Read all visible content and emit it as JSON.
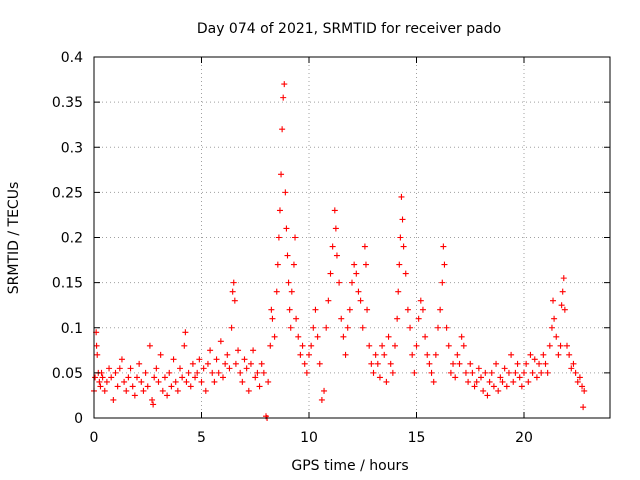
{
  "chart_data": {
    "type": "scatter",
    "title": "Day 074 of 2021, SRMTID for receiver pado",
    "xlabel": "GPS time / hours",
    "ylabel": "SRMTID / TECUs",
    "xlim": [
      0,
      24
    ],
    "ylim": [
      0,
      0.4
    ],
    "xticks": [
      0,
      5,
      10,
      15,
      20
    ],
    "xtick_labels": [
      "0",
      "5",
      "10",
      "15",
      "20"
    ],
    "yticks": [
      0,
      0.05,
      0.1,
      0.15,
      0.2,
      0.25,
      0.3,
      0.35,
      0.4
    ],
    "ytick_labels": [
      "0",
      "0.05",
      "0.1",
      "0.15",
      "0.2",
      "0.25",
      "0.3",
      "0.35",
      "0.4"
    ],
    "grid": true,
    "marker": "+",
    "marker_color": "#ff0000",
    "series": [
      {
        "name": "SRMTID",
        "points": [
          [
            0.0,
            0.03
          ],
          [
            0.05,
            0.045
          ],
          [
            0.1,
            0.095
          ],
          [
            0.12,
            0.08
          ],
          [
            0.15,
            0.07
          ],
          [
            0.2,
            0.05
          ],
          [
            0.25,
            0.04
          ],
          [
            0.3,
            0.035
          ],
          [
            0.35,
            0.05
          ],
          [
            0.4,
            0.045
          ],
          [
            0.5,
            0.03
          ],
          [
            0.6,
            0.04
          ],
          [
            0.7,
            0.055
          ],
          [
            0.8,
            0.045
          ],
          [
            0.9,
            0.02
          ],
          [
            1.0,
            0.05
          ],
          [
            1.1,
            0.035
          ],
          [
            1.2,
            0.055
          ],
          [
            1.3,
            0.065
          ],
          [
            1.4,
            0.04
          ],
          [
            1.5,
            0.03
          ],
          [
            1.6,
            0.045
          ],
          [
            1.7,
            0.055
          ],
          [
            1.8,
            0.035
          ],
          [
            1.9,
            0.025
          ],
          [
            2.0,
            0.045
          ],
          [
            2.1,
            0.06
          ],
          [
            2.2,
            0.04
          ],
          [
            2.3,
            0.03
          ],
          [
            2.4,
            0.05
          ],
          [
            2.5,
            0.035
          ],
          [
            2.6,
            0.08
          ],
          [
            2.7,
            0.02
          ],
          [
            2.75,
            0.015
          ],
          [
            2.8,
            0.045
          ],
          [
            2.9,
            0.055
          ],
          [
            3.0,
            0.04
          ],
          [
            3.1,
            0.07
          ],
          [
            3.2,
            0.03
          ],
          [
            3.3,
            0.045
          ],
          [
            3.4,
            0.025
          ],
          [
            3.5,
            0.05
          ],
          [
            3.6,
            0.035
          ],
          [
            3.7,
            0.065
          ],
          [
            3.8,
            0.04
          ],
          [
            3.9,
            0.03
          ],
          [
            4.0,
            0.055
          ],
          [
            4.1,
            0.045
          ],
          [
            4.2,
            0.08
          ],
          [
            4.25,
            0.095
          ],
          [
            4.3,
            0.04
          ],
          [
            4.4,
            0.05
          ],
          [
            4.5,
            0.035
          ],
          [
            4.6,
            0.06
          ],
          [
            4.7,
            0.045
          ],
          [
            4.8,
            0.05
          ],
          [
            4.9,
            0.065
          ],
          [
            5.0,
            0.04
          ],
          [
            5.1,
            0.055
          ],
          [
            5.2,
            0.03
          ],
          [
            5.3,
            0.06
          ],
          [
            5.4,
            0.075
          ],
          [
            5.5,
            0.05
          ],
          [
            5.6,
            0.04
          ],
          [
            5.7,
            0.065
          ],
          [
            5.8,
            0.05
          ],
          [
            5.9,
            0.085
          ],
          [
            6.0,
            0.045
          ],
          [
            6.1,
            0.06
          ],
          [
            6.2,
            0.07
          ],
          [
            6.3,
            0.055
          ],
          [
            6.4,
            0.1
          ],
          [
            6.45,
            0.14
          ],
          [
            6.5,
            0.15
          ],
          [
            6.55,
            0.13
          ],
          [
            6.6,
            0.06
          ],
          [
            6.7,
            0.075
          ],
          [
            6.8,
            0.05
          ],
          [
            6.9,
            0.04
          ],
          [
            7.0,
            0.065
          ],
          [
            7.1,
            0.055
          ],
          [
            7.2,
            0.03
          ],
          [
            7.3,
            0.06
          ],
          [
            7.4,
            0.075
          ],
          [
            7.5,
            0.045
          ],
          [
            7.6,
            0.05
          ],
          [
            7.7,
            0.035
          ],
          [
            7.8,
            0.06
          ],
          [
            7.9,
            0.05
          ],
          [
            8.0,
            0.002
          ],
          [
            8.05,
            0.0
          ],
          [
            8.1,
            0.04
          ],
          [
            8.2,
            0.08
          ],
          [
            8.25,
            0.12
          ],
          [
            8.3,
            0.11
          ],
          [
            8.4,
            0.09
          ],
          [
            8.5,
            0.14
          ],
          [
            8.55,
            0.17
          ],
          [
            8.6,
            0.2
          ],
          [
            8.65,
            0.23
          ],
          [
            8.7,
            0.27
          ],
          [
            8.75,
            0.32
          ],
          [
            8.8,
            0.355
          ],
          [
            8.85,
            0.37
          ],
          [
            8.9,
            0.25
          ],
          [
            8.95,
            0.21
          ],
          [
            9.0,
            0.18
          ],
          [
            9.05,
            0.15
          ],
          [
            9.1,
            0.12
          ],
          [
            9.15,
            0.1
          ],
          [
            9.2,
            0.14
          ],
          [
            9.3,
            0.17
          ],
          [
            9.35,
            0.2
          ],
          [
            9.4,
            0.11
          ],
          [
            9.5,
            0.09
          ],
          [
            9.6,
            0.07
          ],
          [
            9.7,
            0.08
          ],
          [
            9.8,
            0.06
          ],
          [
            9.9,
            0.05
          ],
          [
            10.0,
            0.07
          ],
          [
            10.1,
            0.08
          ],
          [
            10.2,
            0.1
          ],
          [
            10.3,
            0.12
          ],
          [
            10.4,
            0.09
          ],
          [
            10.5,
            0.06
          ],
          [
            10.6,
            0.02
          ],
          [
            10.7,
            0.03
          ],
          [
            10.8,
            0.1
          ],
          [
            10.9,
            0.13
          ],
          [
            11.0,
            0.16
          ],
          [
            11.1,
            0.19
          ],
          [
            11.2,
            0.23
          ],
          [
            11.25,
            0.21
          ],
          [
            11.3,
            0.18
          ],
          [
            11.4,
            0.15
          ],
          [
            11.5,
            0.11
          ],
          [
            11.6,
            0.09
          ],
          [
            11.7,
            0.07
          ],
          [
            11.8,
            0.1
          ],
          [
            11.9,
            0.12
          ],
          [
            12.0,
            0.15
          ],
          [
            12.1,
            0.17
          ],
          [
            12.2,
            0.16
          ],
          [
            12.3,
            0.14
          ],
          [
            12.4,
            0.13
          ],
          [
            12.5,
            0.1
          ],
          [
            12.6,
            0.19
          ],
          [
            12.65,
            0.17
          ],
          [
            12.7,
            0.12
          ],
          [
            12.8,
            0.08
          ],
          [
            12.9,
            0.06
          ],
          [
            13.0,
            0.05
          ],
          [
            13.1,
            0.07
          ],
          [
            13.2,
            0.06
          ],
          [
            13.3,
            0.045
          ],
          [
            13.4,
            0.08
          ],
          [
            13.5,
            0.07
          ],
          [
            13.6,
            0.04
          ],
          [
            13.7,
            0.09
          ],
          [
            13.8,
            0.06
          ],
          [
            13.9,
            0.05
          ],
          [
            14.0,
            0.08
          ],
          [
            14.1,
            0.11
          ],
          [
            14.15,
            0.14
          ],
          [
            14.2,
            0.17
          ],
          [
            14.25,
            0.2
          ],
          [
            14.3,
            0.245
          ],
          [
            14.35,
            0.22
          ],
          [
            14.4,
            0.19
          ],
          [
            14.5,
            0.16
          ],
          [
            14.6,
            0.12
          ],
          [
            14.7,
            0.1
          ],
          [
            14.8,
            0.07
          ],
          [
            14.9,
            0.05
          ],
          [
            15.0,
            0.08
          ],
          [
            15.1,
            0.11
          ],
          [
            15.2,
            0.13
          ],
          [
            15.3,
            0.12
          ],
          [
            15.4,
            0.09
          ],
          [
            15.5,
            0.07
          ],
          [
            15.6,
            0.06
          ],
          [
            15.7,
            0.05
          ],
          [
            15.8,
            0.04
          ],
          [
            15.9,
            0.07
          ],
          [
            16.0,
            0.1
          ],
          [
            16.1,
            0.12
          ],
          [
            16.2,
            0.15
          ],
          [
            16.25,
            0.19
          ],
          [
            16.3,
            0.17
          ],
          [
            16.4,
            0.1
          ],
          [
            16.5,
            0.08
          ],
          [
            16.6,
            0.05
          ],
          [
            16.7,
            0.06
          ],
          [
            16.8,
            0.045
          ],
          [
            16.9,
            0.07
          ],
          [
            17.0,
            0.06
          ],
          [
            17.1,
            0.09
          ],
          [
            17.2,
            0.08
          ],
          [
            17.3,
            0.05
          ],
          [
            17.4,
            0.04
          ],
          [
            17.5,
            0.06
          ],
          [
            17.6,
            0.05
          ],
          [
            17.7,
            0.035
          ],
          [
            17.8,
            0.04
          ],
          [
            17.9,
            0.055
          ],
          [
            18.0,
            0.045
          ],
          [
            18.1,
            0.03
          ],
          [
            18.2,
            0.05
          ],
          [
            18.3,
            0.025
          ],
          [
            18.4,
            0.04
          ],
          [
            18.5,
            0.05
          ],
          [
            18.6,
            0.035
          ],
          [
            18.7,
            0.06
          ],
          [
            18.8,
            0.03
          ],
          [
            18.9,
            0.045
          ],
          [
            19.0,
            0.04
          ],
          [
            19.1,
            0.055
          ],
          [
            19.2,
            0.035
          ],
          [
            19.3,
            0.05
          ],
          [
            19.4,
            0.07
          ],
          [
            19.5,
            0.04
          ],
          [
            19.6,
            0.05
          ],
          [
            19.7,
            0.06
          ],
          [
            19.8,
            0.045
          ],
          [
            19.9,
            0.035
          ],
          [
            20.0,
            0.05
          ],
          [
            20.1,
            0.06
          ],
          [
            20.2,
            0.04
          ],
          [
            20.3,
            0.07
          ],
          [
            20.4,
            0.05
          ],
          [
            20.5,
            0.065
          ],
          [
            20.6,
            0.045
          ],
          [
            20.7,
            0.06
          ],
          [
            20.8,
            0.05
          ],
          [
            20.9,
            0.07
          ],
          [
            21.0,
            0.06
          ],
          [
            21.1,
            0.05
          ],
          [
            21.2,
            0.08
          ],
          [
            21.3,
            0.1
          ],
          [
            21.35,
            0.13
          ],
          [
            21.4,
            0.11
          ],
          [
            21.5,
            0.09
          ],
          [
            21.6,
            0.07
          ],
          [
            21.7,
            0.08
          ],
          [
            21.75,
            0.125
          ],
          [
            21.8,
            0.14
          ],
          [
            21.85,
            0.155
          ],
          [
            21.9,
            0.12
          ],
          [
            22.0,
            0.08
          ],
          [
            22.1,
            0.07
          ],
          [
            22.2,
            0.055
          ],
          [
            22.3,
            0.06
          ],
          [
            22.4,
            0.05
          ],
          [
            22.5,
            0.04
          ],
          [
            22.6,
            0.045
          ],
          [
            22.7,
            0.035
          ],
          [
            22.75,
            0.012
          ],
          [
            22.8,
            0.03
          ]
        ]
      }
    ]
  }
}
